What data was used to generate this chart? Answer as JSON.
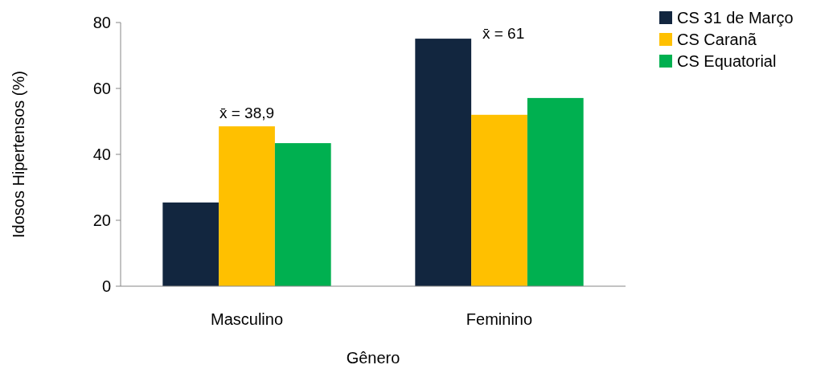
{
  "chart_data": {
    "type": "bar",
    "xlabel": "Gênero",
    "ylabel": "Idosos Hipertensos (%)",
    "categories": [
      "Masculino",
      "Feminino"
    ],
    "series": [
      {
        "name": "CS 31 de Março",
        "color": "#12263f",
        "values": [
          25.4,
          75.1
        ]
      },
      {
        "name": "CS Caranã",
        "color": "#ffc000",
        "values": [
          48.5,
          52
        ]
      },
      {
        "name": "CS Equatorial",
        "color": "#00b050",
        "values": [
          43.4,
          57.1
        ]
      }
    ],
    "annotations": [
      "x̄ = 38,9",
      "x̄ = 61"
    ],
    "ylim": [
      0,
      80
    ],
    "yticks": [
      0,
      20,
      40,
      60,
      80
    ],
    "grid": false,
    "legend": "top right"
  }
}
